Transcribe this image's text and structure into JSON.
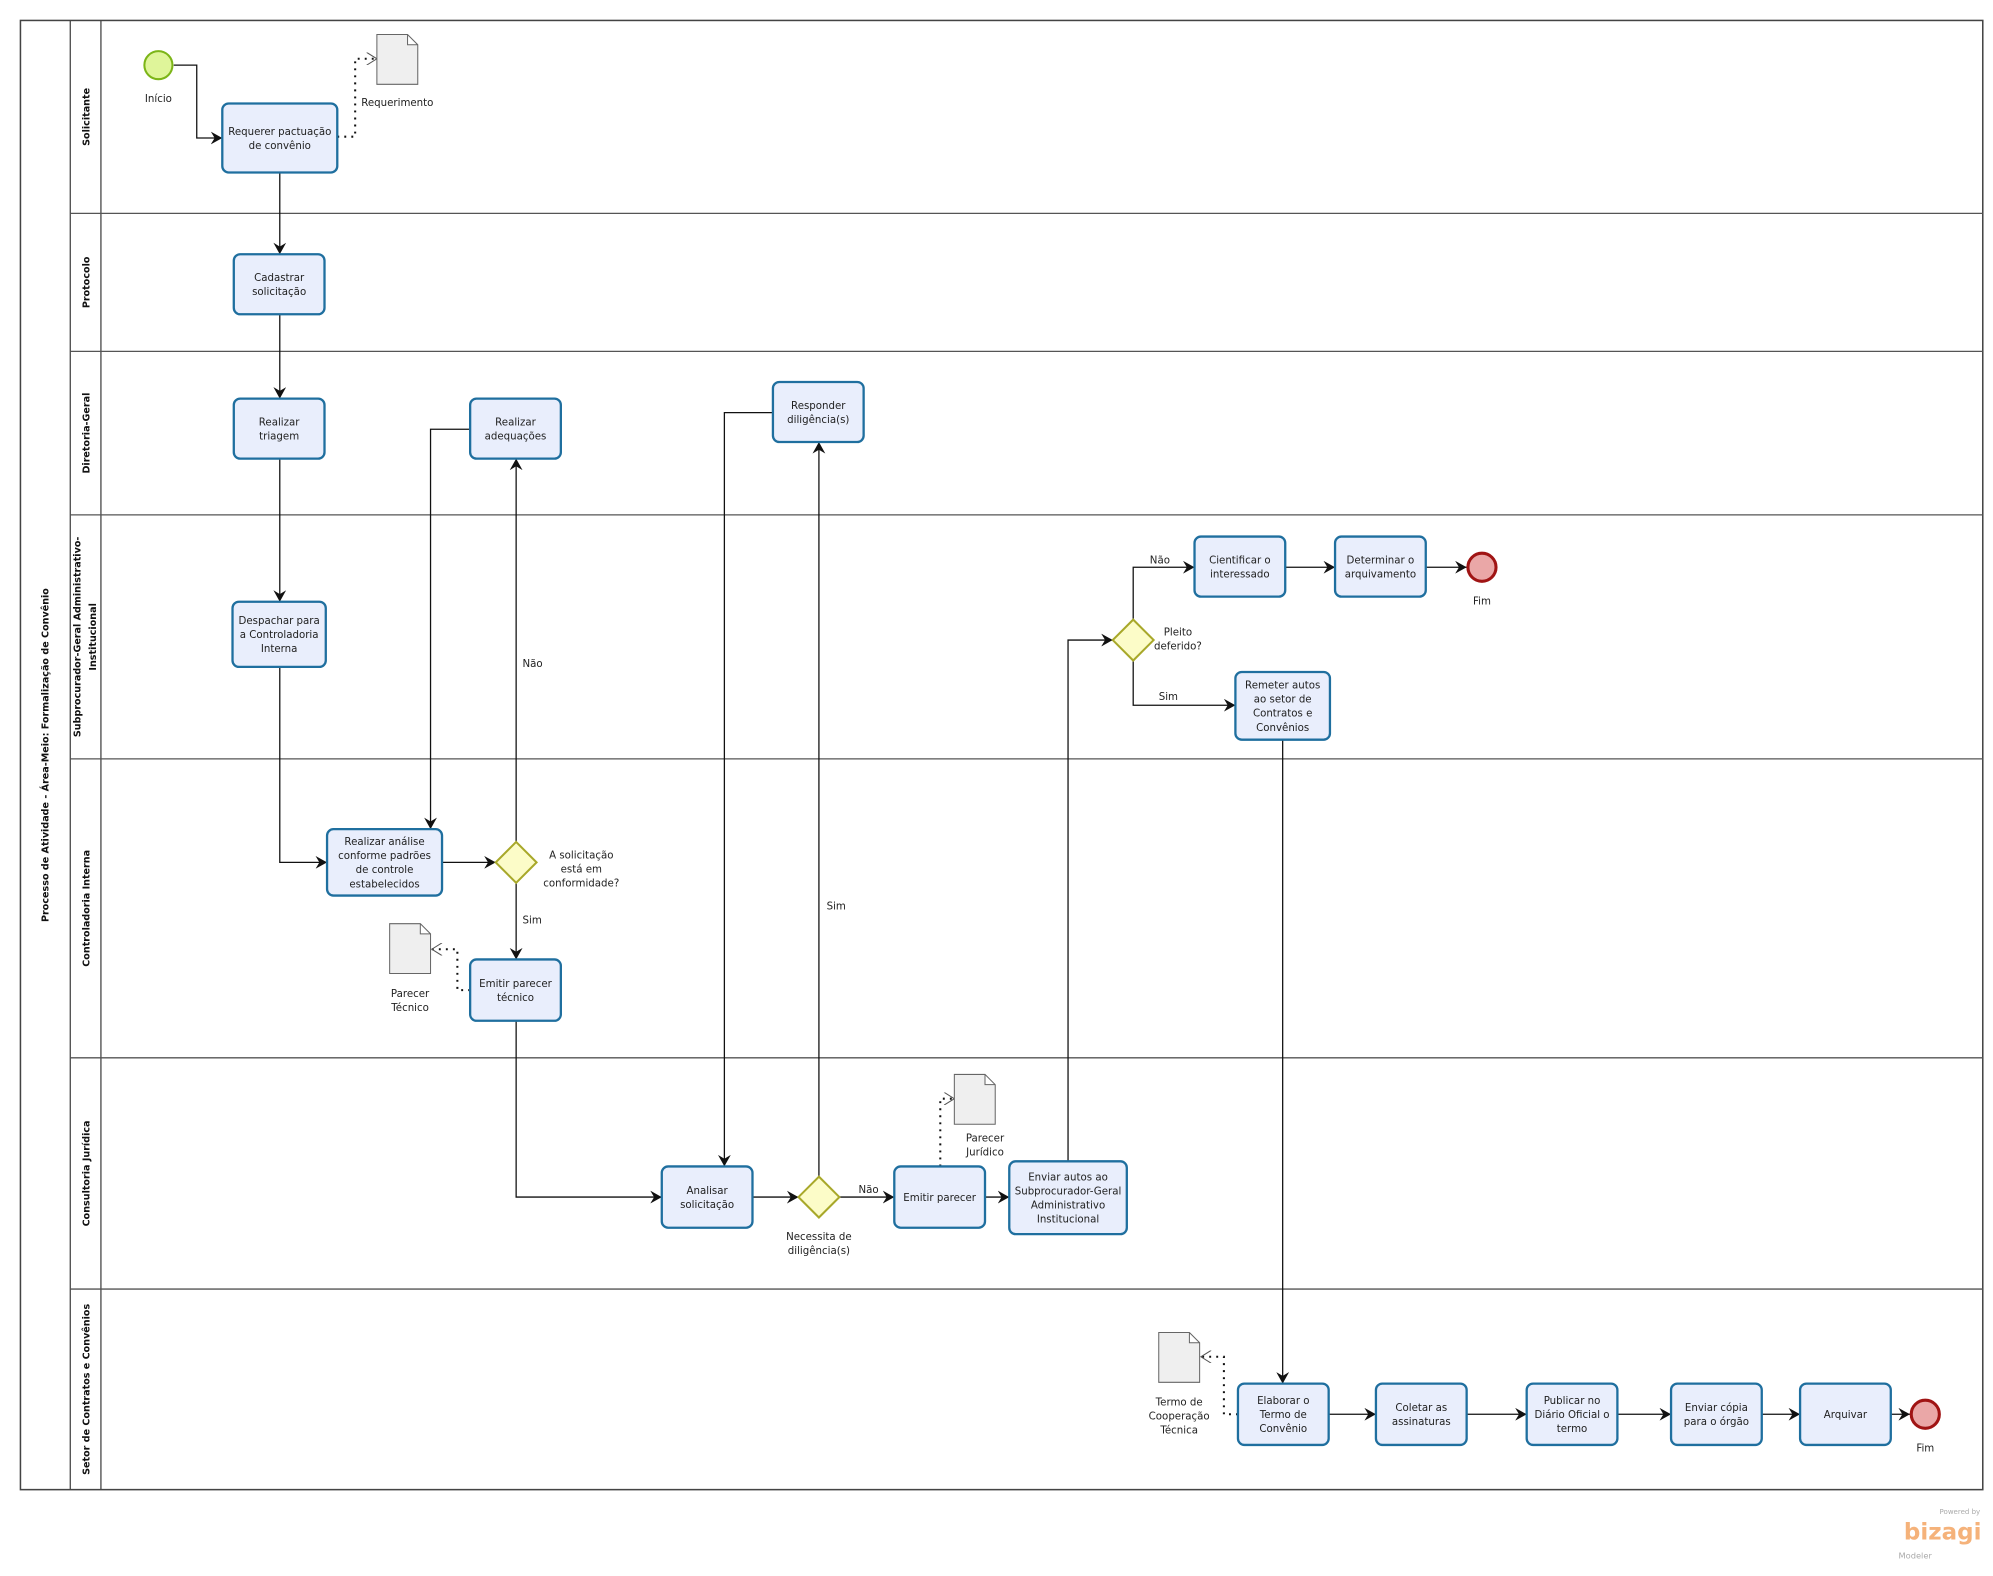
{
  "pool": {
    "title": "Processo de Atividade - Área-Meio: Formalização de Convênio"
  },
  "lanes": [
    {
      "name": "Solicitante"
    },
    {
      "name": "Protocolo"
    },
    {
      "name": "Diretoria-Geral"
    },
    {
      "name": "Subprocurador-Geral Administrativo-",
      "name2": "Institucional"
    },
    {
      "name": "Controladoria Interna"
    },
    {
      "name": "Consultoria Jurídica"
    },
    {
      "name": "Setor de Contratos e Convênios"
    }
  ],
  "tasks": [
    {
      "lines": [
        "Requerer pactuação",
        "de convênio"
      ]
    },
    {
      "lines": [
        "Cadastrar",
        "solicitação"
      ]
    },
    {
      "lines": [
        "Realizar",
        "triagem"
      ]
    },
    {
      "lines": [
        "Realizar",
        "adequações"
      ]
    },
    {
      "lines": [
        "Responder",
        "diligência(s)"
      ]
    },
    {
      "lines": [
        "Despachar para",
        "a Controladoria",
        "Interna"
      ]
    },
    {
      "lines": [
        "Cientificar o",
        "interessado"
      ]
    },
    {
      "lines": [
        "Determinar o",
        "arquivamento"
      ]
    },
    {
      "lines": [
        "Remeter autos",
        "ao setor de",
        "Contratos e",
        "Convênios"
      ]
    },
    {
      "lines": [
        "Realizar análise",
        "conforme padrões",
        "de controle",
        "estabelecidos"
      ]
    },
    {
      "lines": [
        "Emitir parecer",
        "técnico"
      ]
    },
    {
      "lines": [
        "Analisar",
        "solicitação"
      ]
    },
    {
      "lines": [
        "Emitir parecer"
      ]
    },
    {
      "lines": [
        "Enviar autos ao",
        "Subprocurador-Geral",
        "Administrativo",
        "Institucional"
      ]
    },
    {
      "lines": [
        "Elaborar o",
        "Termo de",
        "Convênio"
      ]
    },
    {
      "lines": [
        "Coletar as",
        "assinaturas"
      ]
    },
    {
      "lines": [
        "Publicar no",
        "Diário Oficial o",
        "termo"
      ]
    },
    {
      "lines": [
        "Enviar cópia",
        "para o órgão"
      ]
    },
    {
      "lines": [
        "Arquivar"
      ]
    }
  ],
  "events": [
    {
      "type": "start",
      "label": "Início"
    },
    {
      "type": "end",
      "label": "Fim"
    },
    {
      "type": "end",
      "label": "Fim"
    }
  ],
  "gateways": [
    {
      "lines": [
        "A solicitação",
        "está em",
        "conformidade?"
      ]
    },
    {
      "lines": [
        "Necessita de",
        "diligência(s)"
      ]
    },
    {
      "lines": [
        "Pleito",
        "deferido?"
      ]
    }
  ],
  "data_objects": [
    {
      "lines": [
        "Requerimento"
      ]
    },
    {
      "lines": [
        "Parecer",
        "Técnico"
      ]
    },
    {
      "lines": [
        "Parecer",
        "Jurídico"
      ]
    },
    {
      "lines": [
        "Termo de",
        "Cooperação",
        "Técnica"
      ]
    }
  ],
  "flow_labels": [
    "Não",
    "Sim",
    "Sim",
    "Não",
    "Não",
    "Sim"
  ],
  "branding": {
    "powered": "Powered by",
    "brand": "bizagi",
    "product": "Modeler"
  },
  "colors": {
    "task_fill": "#e9eefc",
    "task_stroke": "#1f6f9f",
    "start_fill": "#dff59a",
    "start_stroke": "#7cb518",
    "end_fill": "#eaa7a7",
    "end_stroke": "#a01414",
    "gateway_fill": "#fcfcc8",
    "gateway_stroke": "#a8a82a",
    "brand": "#f5b27a"
  }
}
